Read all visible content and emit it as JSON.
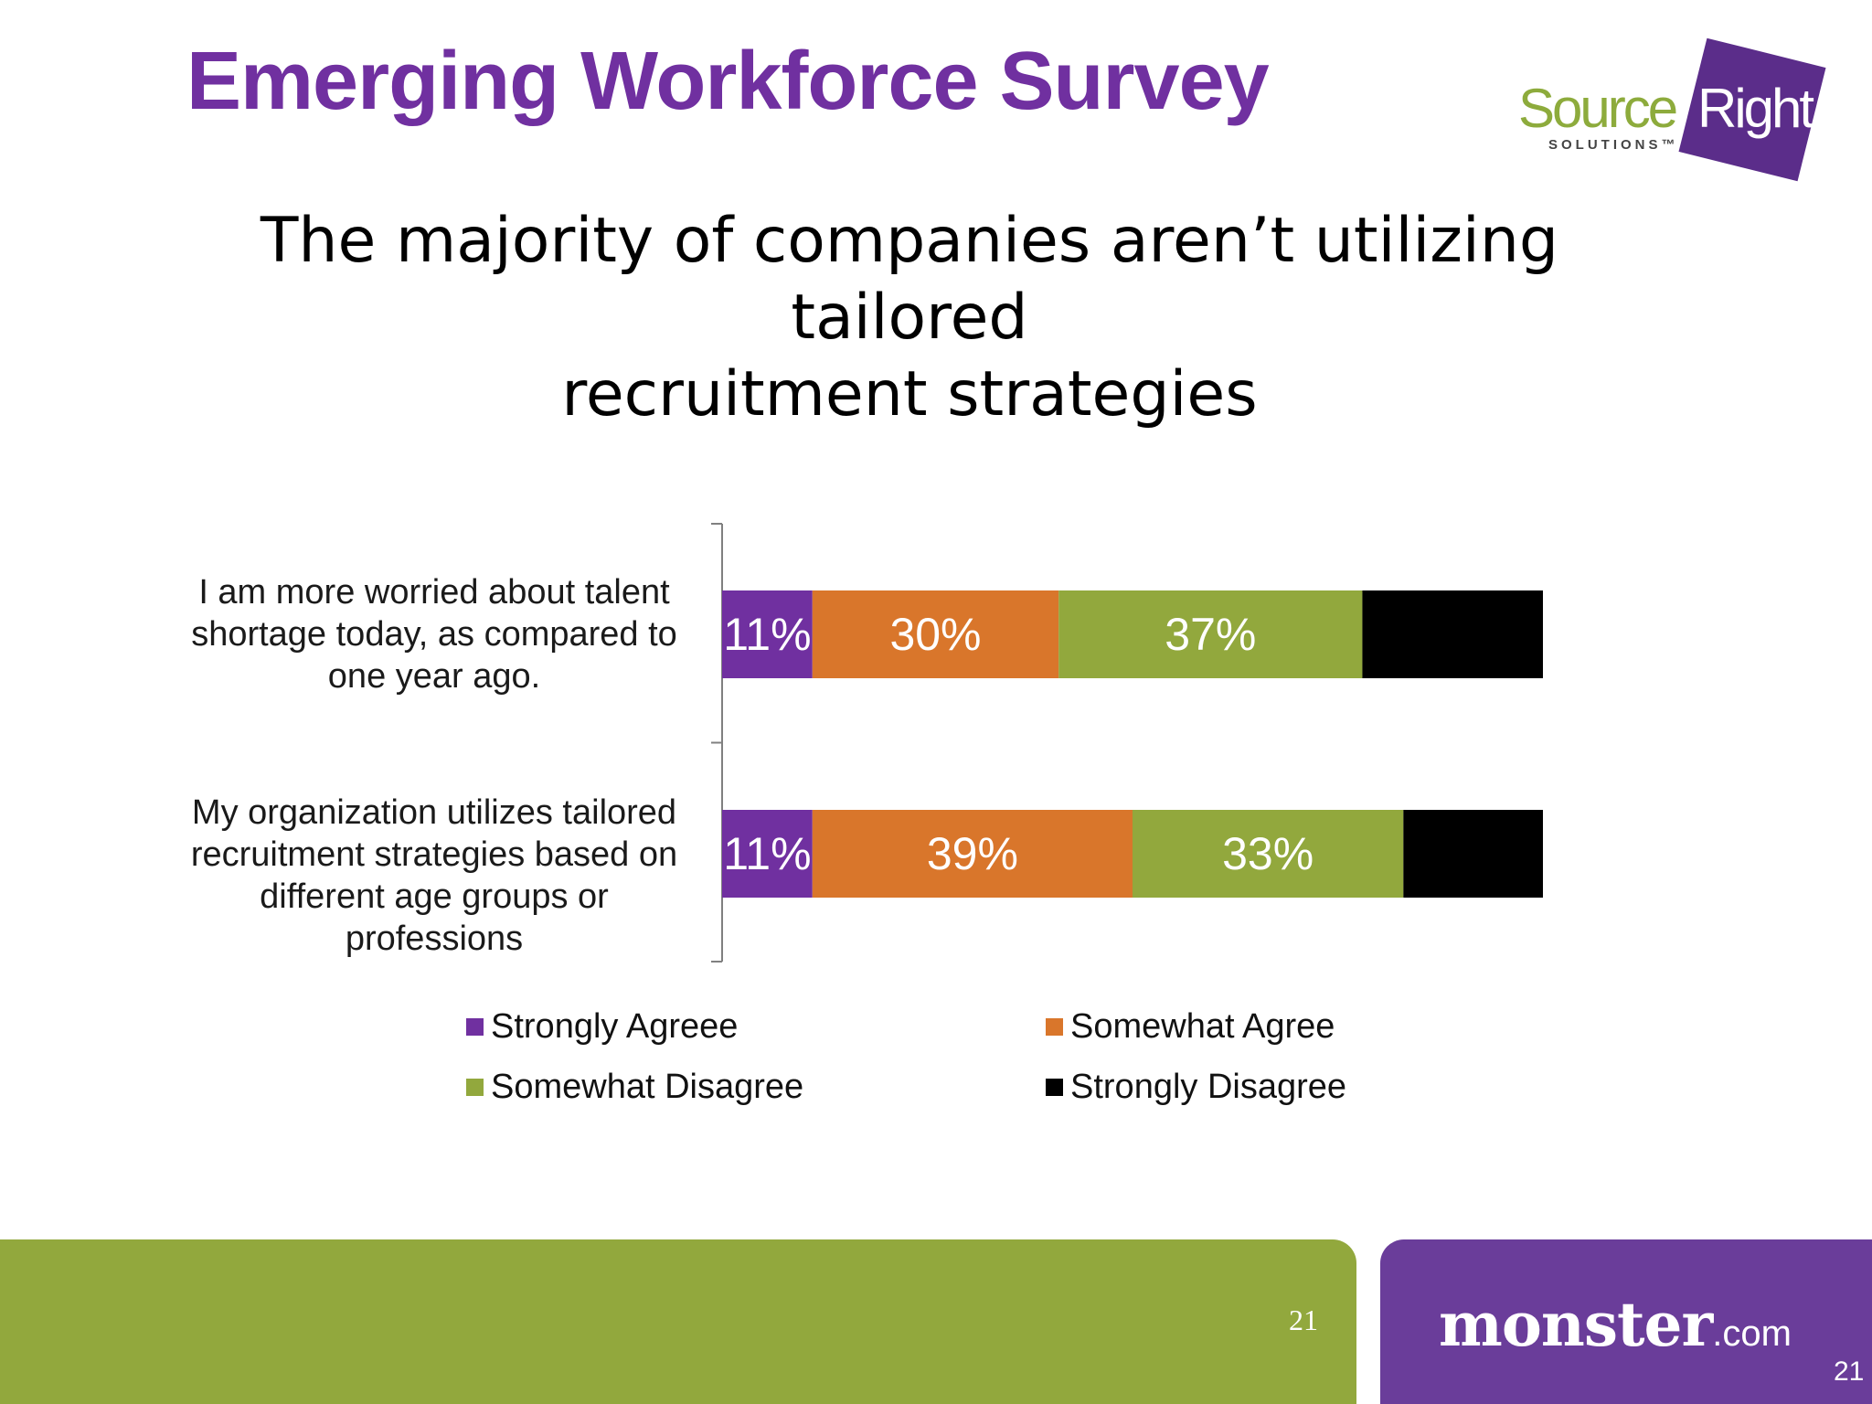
{
  "header": {
    "title": "Emerging Workforce Survey",
    "logo": {
      "word1": "Source",
      "word2": "Right",
      "sub": "SOLUTIONS™"
    }
  },
  "subtitle": {
    "line1": "The majority of companies aren’t utilizing tailored",
    "line2": "recruitment strategies"
  },
  "chart_data": {
    "type": "bar",
    "orientation": "horizontal",
    "stacked": true,
    "categories": [
      "I am more worried about talent shortage today, as compared to one year ago.",
      "My organization utilizes tailored recruitment strategies based on different age groups or professions"
    ],
    "category_lines": [
      [
        "I am more worried about talent",
        "shortage today, as compared to",
        "one year ago."
      ],
      [
        "My organization utilizes tailored",
        "recruitment strategies based on",
        "different age groups or",
        "professions"
      ]
    ],
    "series": [
      {
        "name": "Strongly Agreee",
        "color": "#7030a0",
        "values": [
          11,
          11
        ],
        "labels": [
          "11%",
          "11%"
        ]
      },
      {
        "name": "Somewhat Agree",
        "color": "#d9762b",
        "values": [
          30,
          39
        ],
        "labels": [
          "30%",
          "39%"
        ]
      },
      {
        "name": "Somewhat Disagree",
        "color": "#92a83d",
        "values": [
          37,
          33
        ],
        "labels": [
          "37%",
          "33%"
        ]
      },
      {
        "name": "Strongly Disagree",
        "color": "#000000",
        "values": [
          22,
          17
        ],
        "labels": [
          "",
          ""
        ]
      }
    ],
    "xlim": [
      0,
      100
    ],
    "grid": false,
    "legend_position": "bottom"
  },
  "footer": {
    "page_center": "21",
    "brand": "monster",
    "brand_suffix": ".com",
    "page_corner": "21"
  }
}
